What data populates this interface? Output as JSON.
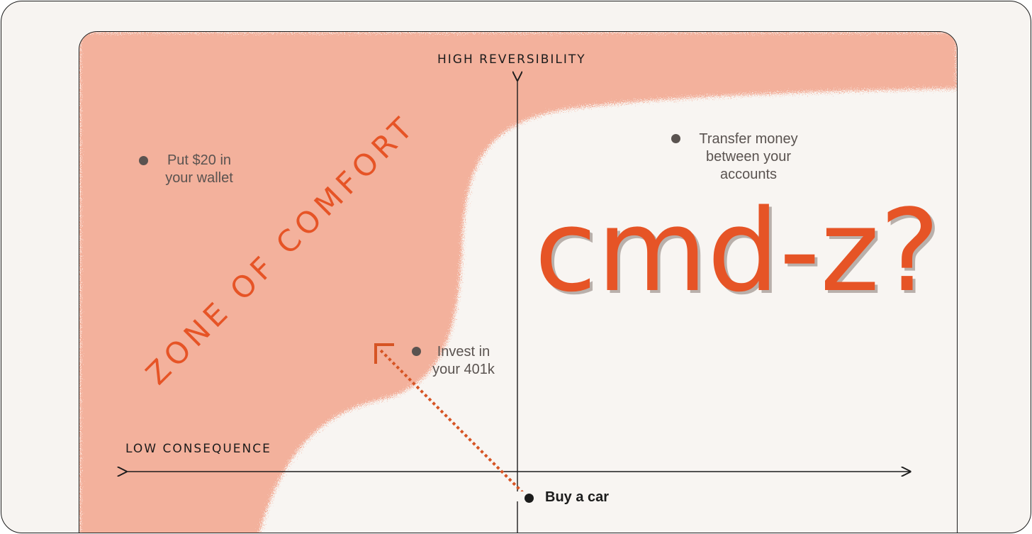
{
  "axes": {
    "y_top_label": "HIGH REVERSIBILITY",
    "x_left_label": "LOW CONSEQUENCE"
  },
  "zone_label": "ZONE OF COMFORT",
  "headline": "cmd-z?",
  "items": [
    {
      "lines": [
        "Put $20 in",
        "your wallet"
      ]
    },
    {
      "lines": [
        "Transfer money",
        "between your",
        "accounts"
      ]
    },
    {
      "lines": [
        "Invest in",
        "your 401k"
      ]
    },
    {
      "lines": [
        "Buy a car"
      ]
    }
  ],
  "colors": {
    "accent": "#e65426",
    "zone_fill": "#f3b19c",
    "background": "#f8f5f2",
    "ink": "#1c1c1c",
    "dot": "#5a5350"
  }
}
